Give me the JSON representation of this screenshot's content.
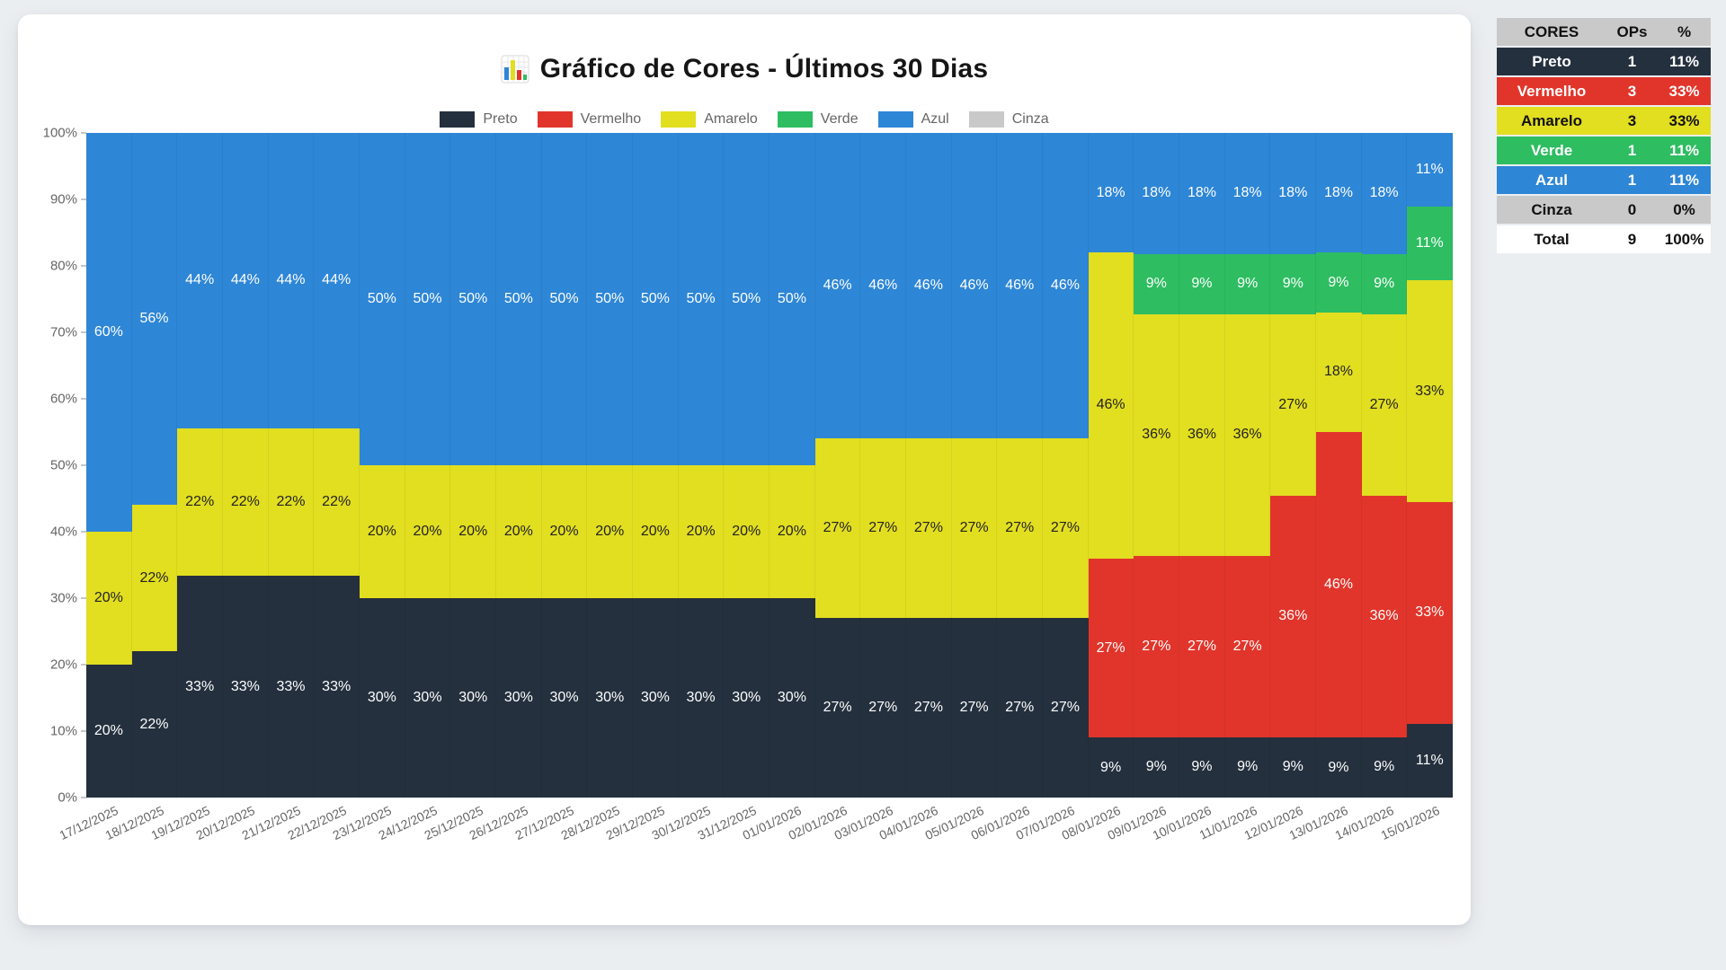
{
  "page": {
    "background": "#ebeef1"
  },
  "chart_data": {
    "type": "bar",
    "stacked": "percent",
    "title": "Gráfico de Cores - Últimos 30 Dias",
    "title_icon": "bar-chart-emoji",
    "legend_position": "top",
    "grid": false,
    "xlabel": "",
    "ylabel": "",
    "ylim": [
      0,
      100
    ],
    "y_ticks": [
      "100%",
      "90%",
      "80%",
      "70%",
      "60%",
      "50%",
      "40%",
      "30%",
      "20%",
      "10%",
      "0%"
    ],
    "value_label_suffix": "%",
    "value_label_colors": {
      "Amarelo": "#222222",
      "Cinza": "#222222",
      "default": "#ffffff"
    },
    "axis_text_color": "#666666",
    "categories": [
      "17/12/2025",
      "18/12/2025",
      "19/12/2025",
      "20/12/2025",
      "21/12/2025",
      "22/12/2025",
      "23/12/2025",
      "24/12/2025",
      "25/12/2025",
      "26/12/2025",
      "27/12/2025",
      "28/12/2025",
      "29/12/2025",
      "30/12/2025",
      "31/12/2025",
      "01/01/2026",
      "02/01/2026",
      "03/01/2026",
      "04/01/2026",
      "05/01/2026",
      "06/01/2026",
      "07/01/2026",
      "08/01/2026",
      "09/01/2026",
      "10/01/2026",
      "11/01/2026",
      "12/01/2026",
      "13/01/2026",
      "14/01/2026",
      "15/01/2026"
    ],
    "series": [
      {
        "name": "Preto",
        "color": "#24303e",
        "values": [
          20,
          22,
          33,
          33,
          33,
          33,
          30,
          30,
          30,
          30,
          30,
          30,
          30,
          30,
          30,
          30,
          27,
          27,
          27,
          27,
          27,
          27,
          9,
          9,
          9,
          9,
          9,
          9,
          9,
          11
        ]
      },
      {
        "name": "Vermelho",
        "color": "#e1352b",
        "values": [
          0,
          0,
          0,
          0,
          0,
          0,
          0,
          0,
          0,
          0,
          0,
          0,
          0,
          0,
          0,
          0,
          0,
          0,
          0,
          0,
          0,
          0,
          27,
          27,
          27,
          27,
          36,
          46,
          36,
          33
        ]
      },
      {
        "name": "Amarelo",
        "color": "#e2de20",
        "values": [
          20,
          22,
          22,
          22,
          22,
          22,
          20,
          20,
          20,
          20,
          20,
          20,
          20,
          20,
          20,
          20,
          27,
          27,
          27,
          27,
          27,
          27,
          46,
          36,
          36,
          36,
          27,
          18,
          27,
          33
        ]
      },
      {
        "name": "Verde",
        "color": "#2ebd61",
        "values": [
          0,
          0,
          0,
          0,
          0,
          0,
          0,
          0,
          0,
          0,
          0,
          0,
          0,
          0,
          0,
          0,
          0,
          0,
          0,
          0,
          0,
          0,
          0,
          9,
          9,
          9,
          9,
          9,
          9,
          11
        ]
      },
      {
        "name": "Azul",
        "color": "#2e86d6",
        "values": [
          60,
          56,
          44,
          44,
          44,
          44,
          50,
          50,
          50,
          50,
          50,
          50,
          50,
          50,
          50,
          50,
          46,
          46,
          46,
          46,
          46,
          46,
          18,
          18,
          18,
          18,
          18,
          18,
          18,
          11
        ]
      },
      {
        "name": "Cinza",
        "color": "#c9c9c9",
        "values": [
          0,
          0,
          0,
          0,
          0,
          0,
          0,
          0,
          0,
          0,
          0,
          0,
          0,
          0,
          0,
          0,
          0,
          0,
          0,
          0,
          0,
          0,
          0,
          0,
          0,
          0,
          0,
          0,
          0,
          0
        ]
      }
    ]
  },
  "table": {
    "headers": [
      "CORES",
      "OPs",
      "%"
    ],
    "header_bg": "#c9c9c9",
    "header_fg": "#111111",
    "rows": [
      {
        "label": "Preto",
        "ops": "1",
        "pct": "11%",
        "bg": "#24303e",
        "fg": "#ffffff"
      },
      {
        "label": "Vermelho",
        "ops": "3",
        "pct": "33%",
        "bg": "#e1352b",
        "fg": "#ffffff"
      },
      {
        "label": "Amarelo",
        "ops": "3",
        "pct": "33%",
        "bg": "#e2de20",
        "fg": "#111111"
      },
      {
        "label": "Verde",
        "ops": "1",
        "pct": "11%",
        "bg": "#2ebd61",
        "fg": "#ffffff"
      },
      {
        "label": "Azul",
        "ops": "1",
        "pct": "11%",
        "bg": "#2e86d6",
        "fg": "#ffffff"
      },
      {
        "label": "Cinza",
        "ops": "0",
        "pct": "0%",
        "bg": "#c9c9c9",
        "fg": "#111111"
      },
      {
        "label": "Total",
        "ops": "9",
        "pct": "100%",
        "bg": "#ffffff",
        "fg": "#111111"
      }
    ]
  }
}
